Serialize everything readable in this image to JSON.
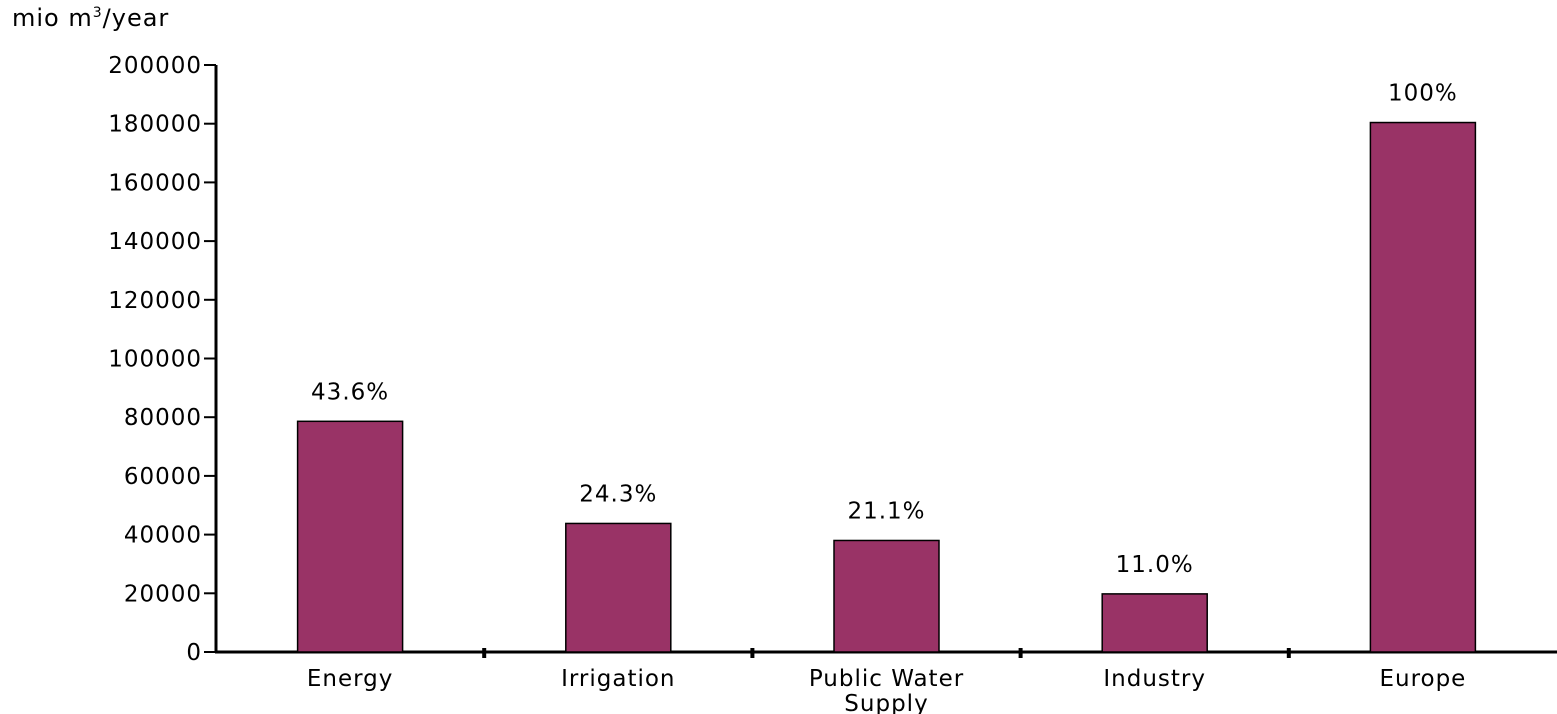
{
  "chart_data": {
    "type": "bar",
    "ylabel_main": "mio m",
    "ylabel_sup": "3",
    "ylabel_tail": "/year",
    "xlabel": "",
    "ylim": [
      0,
      200000
    ],
    "ytick_step": 20000,
    "yticks": [
      "0",
      "20000",
      "40000",
      "60000",
      "80000",
      "100000",
      "120000",
      "140000",
      "160000",
      "180000",
      "200000"
    ],
    "categories": [
      [
        "Energy"
      ],
      [
        "Irrigation"
      ],
      [
        "Public Water",
        "Supply"
      ],
      [
        "Industry"
      ],
      [
        "Europe"
      ]
    ],
    "values": [
      78600,
      43800,
      38000,
      19800,
      180400
    ],
    "data_labels": [
      "43.6%",
      "24.3%",
      "21.1%",
      "11.0%",
      "100%"
    ],
    "bar_color": "#993366",
    "grid": false,
    "legend": "none"
  }
}
